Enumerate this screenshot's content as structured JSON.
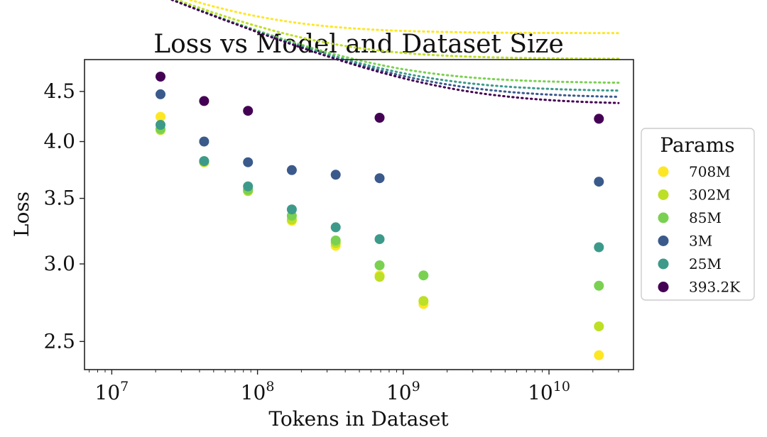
{
  "chart_data": {
    "type": "scatter",
    "title": "Loss vs Model and Dataset Size",
    "xlabel": "Tokens in Dataset",
    "ylabel": "Loss",
    "xscale": "log",
    "yscale": "log",
    "xlim": [
      6500000,
      38000000000
    ],
    "ylim": [
      2.34,
      4.85
    ],
    "x_ticks": [
      {
        "value": 10000000,
        "base": "10",
        "exp": "7"
      },
      {
        "value": 100000000,
        "base": "10",
        "exp": "8"
      },
      {
        "value": 1000000000,
        "base": "10",
        "exp": "9"
      },
      {
        "value": 10000000000,
        "base": "10",
        "exp": "10"
      }
    ],
    "y_ticks": [
      {
        "value": 2.5,
        "label": "2.5"
      },
      {
        "value": 3.0,
        "label": "3.0"
      },
      {
        "value": 3.5,
        "label": "3.5"
      },
      {
        "value": 4.0,
        "label": "4.0"
      },
      {
        "value": 4.5,
        "label": "4.5"
      }
    ],
    "legend_title": "Params",
    "legend_position": "right",
    "series": [
      {
        "name": "708M",
        "color": "#fde725",
        "points": [
          [
            21600000,
            4.24
          ],
          [
            43000000,
            3.81
          ],
          [
            86000000,
            3.57
          ],
          [
            172000000,
            3.32
          ],
          [
            344000000,
            3.13
          ],
          [
            688000000,
            2.92
          ],
          [
            1376000000,
            2.73
          ],
          [
            22000000000,
            2.42
          ]
        ],
        "fit": {
          "A": 16.8,
          "alpha": 0.089,
          "L": 1.9,
          "B": 100000000.0
        }
      },
      {
        "name": "302M",
        "color": "#bddf26",
        "points": [
          [
            21600000,
            4.11
          ],
          [
            43000000,
            3.81
          ],
          [
            86000000,
            3.56
          ],
          [
            172000000,
            3.33
          ],
          [
            344000000,
            3.15
          ],
          [
            688000000,
            2.91
          ],
          [
            1376000000,
            2.75
          ],
          [
            22000000000,
            2.59
          ]
        ],
        "fit": {
          "A": 16.8,
          "alpha": 0.089,
          "L": 1.9,
          "B": 300000000.0
        }
      },
      {
        "name": "85M",
        "color": "#7ad151",
        "points": [
          [
            21600000,
            4.12
          ],
          [
            43000000,
            3.82
          ],
          [
            86000000,
            3.57
          ],
          [
            172000000,
            3.36
          ],
          [
            344000000,
            3.17
          ],
          [
            688000000,
            2.99
          ],
          [
            1376000000,
            2.92
          ],
          [
            22000000000,
            2.85
          ]
        ],
        "fit": {
          "A": 16.8,
          "alpha": 0.089,
          "L": 1.9,
          "B": 882000000.0
        }
      },
      {
        "name": "3M",
        "color": "#3b5a8c",
        "points": [
          [
            21600000,
            4.47
          ],
          [
            43000000,
            4.0
          ],
          [
            86000000,
            3.81
          ],
          [
            172000000,
            3.74
          ],
          [
            344000000,
            3.7
          ],
          [
            688000000,
            3.67
          ],
          [
            22000000000,
            3.64
          ]
        ],
        "fit": {
          "A": 16.8,
          "alpha": 0.089,
          "L": 1.9,
          "B": 1724000000.0
        }
      },
      {
        "name": "25M",
        "color": "#3d9a8a",
        "points": [
          [
            21600000,
            4.16
          ],
          [
            43000000,
            3.82
          ],
          [
            86000000,
            3.6
          ],
          [
            172000000,
            3.41
          ],
          [
            344000000,
            3.27
          ],
          [
            688000000,
            3.18
          ],
          [
            22000000000,
            3.12
          ]
        ],
        "fit": {
          "A": 16.8,
          "alpha": 0.089,
          "L": 1.9,
          "B": 1276000000.0
        }
      },
      {
        "name": "393.2K",
        "color": "#440154",
        "points": [
          [
            21600000,
            4.66
          ],
          [
            43000000,
            4.4
          ],
          [
            86000000,
            4.3
          ],
          [
            688000000,
            4.23
          ],
          [
            22000000000,
            4.22
          ]
        ],
        "fit": {
          "A": 16.8,
          "alpha": 0.089,
          "L": 1.9,
          "B": 2340000000.0
        }
      }
    ]
  }
}
